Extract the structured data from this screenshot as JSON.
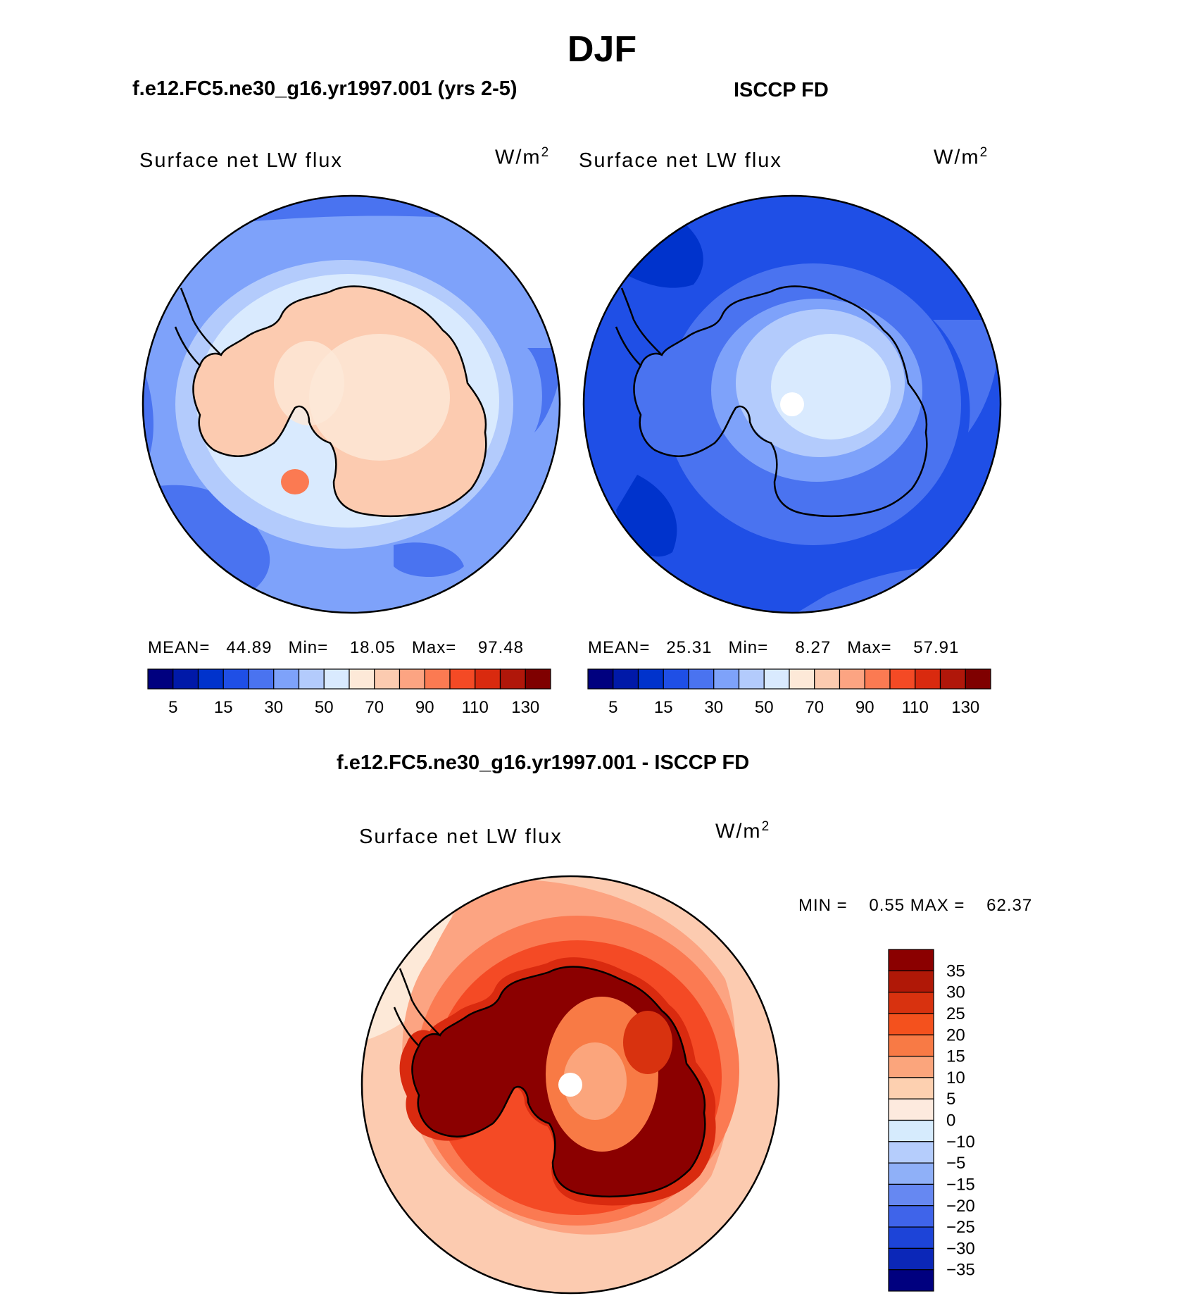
{
  "figure": {
    "season": "DJF",
    "model_title": "f.e12.FC5.ne30_g16.yr1997.001 (yrs 2-5)",
    "obs_title": "ISCCP FD",
    "diff_title": "f.e12.FC5.ne30_g16.yr1997.001 - ISCCP FD"
  },
  "panels": {
    "model": {
      "variable": "Surface net LW flux",
      "unit": "W/m",
      "unit_sup": "2",
      "stats": {
        "mean_label": "MEAN=",
        "mean": "44.89",
        "min_label": "Min=",
        "min": "18.05",
        "max_label": "Max=",
        "max": "97.48"
      }
    },
    "obs": {
      "variable": "Surface net LW flux",
      "unit": "W/m",
      "unit_sup": "2",
      "stats": {
        "mean_label": "MEAN=",
        "mean": "25.31",
        "min_label": "Min=",
        "min": "8.27",
        "max_label": "Max=",
        "max": "57.91"
      }
    },
    "diff": {
      "variable": "Surface net LW flux",
      "unit": "W/m",
      "unit_sup": "2",
      "stats": {
        "min_label": "MIN =",
        "min": "0.55",
        "max_label": "MAX =",
        "max": "62.37"
      }
    }
  },
  "colorbars": {
    "abs": {
      "colors": [
        "#00007f",
        "#0019a8",
        "#0033cc",
        "#1f4fe6",
        "#4a73f0",
        "#7ea2fa",
        "#b3cbfc",
        "#d9eafe",
        "#fde9d8",
        "#fccbb0",
        "#fca482",
        "#fb7a52",
        "#f44a25",
        "#d92a0f",
        "#b0170a",
        "#7f0000"
      ],
      "tick_labels": [
        "5",
        "15",
        "30",
        "50",
        "70",
        "90",
        "110",
        "130"
      ]
    },
    "diff": {
      "colors_top_to_bottom": [
        "#8b0000",
        "#b01807",
        "#d8320f",
        "#f4511d",
        "#f87a45",
        "#fba57c",
        "#fdd0b0",
        "#fdeade",
        "#d6ebfd",
        "#b5cdfc",
        "#8fb0f8",
        "#6688f2",
        "#3f64ea",
        "#1d44d8",
        "#0b27b8",
        "#00007f"
      ],
      "tick_labels": [
        "35",
        "30",
        "25",
        "20",
        "15",
        "10",
        "5",
        "0",
        "−10",
        "−5",
        "−15",
        "−20",
        "−25",
        "−30",
        "−35"
      ]
    }
  }
}
